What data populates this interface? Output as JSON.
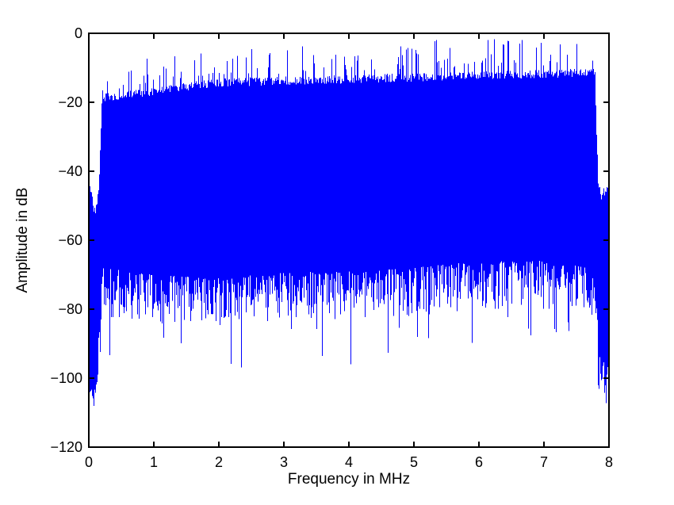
{
  "figure": {
    "background": "#ffffff"
  },
  "chart_data": {
    "type": "line",
    "title": "",
    "xlabel": "Frequency in MHz",
    "ylabel": "Amplitude in dB",
    "xlim": [
      0,
      8
    ],
    "ylim": [
      -120,
      0
    ],
    "xticks": [
      0,
      1,
      2,
      3,
      4,
      5,
      6,
      7,
      8
    ],
    "yticks": [
      0,
      -20,
      -40,
      -60,
      -80,
      -100,
      -120
    ],
    "grid": false,
    "legend": null,
    "line_color": "#0000ff",
    "axis_color": "#000000",
    "description": "Dense noise-like FFT magnitude spectrum (OFDM/DMT-style multicarrier signal). Occupied band runs from about 0.2 MHz to 7.8 MHz with a solid envelope top rising from about -20 dB to -13 dB and sparse spikes reaching up to about -1 dB; the noise floor fringe extends from about -68 dB down to occasional dips near -98 dB. Below 0.15 MHz and above 7.82 MHz the spectrum rolls off to about -45 dB tails that reach down to roughly -108 dB.",
    "band": [
      0.19,
      7.79
    ],
    "top_spike_probability": 0.17,
    "seed": 7,
    "envelope": {
      "top_solid": [
        [
          0,
          -44
        ],
        [
          0.04,
          -47
        ],
        [
          0.08,
          -52
        ],
        [
          0.12,
          -50
        ],
        [
          0.15,
          -46
        ],
        [
          0.17,
          -33
        ],
        [
          0.2,
          -20
        ],
        [
          0.5,
          -19.5
        ],
        [
          1,
          -18
        ],
        [
          2,
          -15.5
        ],
        [
          3,
          -15
        ],
        [
          4,
          -14.5
        ],
        [
          5,
          -14
        ],
        [
          6,
          -13.5
        ],
        [
          7,
          -13
        ],
        [
          7.78,
          -12.5
        ],
        [
          7.8,
          -26
        ],
        [
          7.83,
          -44
        ],
        [
          7.88,
          -48
        ],
        [
          7.92,
          -46
        ],
        [
          8,
          -44
        ]
      ],
      "peak": [
        [
          0.2,
          -10
        ],
        [
          0.6,
          -8
        ],
        [
          1,
          -7
        ],
        [
          2,
          -5
        ],
        [
          3,
          -4
        ],
        [
          4,
          -2.5
        ],
        [
          5,
          -2
        ],
        [
          6,
          -1.5
        ],
        [
          7,
          -1
        ],
        [
          7.78,
          -1
        ],
        [
          7.83,
          -42
        ],
        [
          8,
          -41
        ]
      ],
      "bottom_solid": [
        [
          0,
          -100
        ],
        [
          0.06,
          -104
        ],
        [
          0.1,
          -102
        ],
        [
          0.14,
          -90
        ],
        [
          0.18,
          -76
        ],
        [
          0.2,
          -68
        ],
        [
          1,
          -70
        ],
        [
          2,
          -71
        ],
        [
          3,
          -69
        ],
        [
          4,
          -69
        ],
        [
          5,
          -68
        ],
        [
          6,
          -66
        ],
        [
          7,
          -66
        ],
        [
          7.78,
          -68
        ],
        [
          7.82,
          -80
        ],
        [
          7.86,
          -92
        ],
        [
          7.95,
          -96
        ],
        [
          8,
          -97
        ]
      ],
      "bottom_spike_max": [
        [
          0,
          -108
        ],
        [
          0.1,
          -108
        ],
        [
          0.15,
          -101
        ],
        [
          0.2,
          -98
        ],
        [
          0.7,
          -93
        ],
        [
          1.3,
          -94
        ],
        [
          2,
          -90
        ],
        [
          2.25,
          -98
        ],
        [
          3,
          -89
        ],
        [
          3.9,
          -96
        ],
        [
          4.3,
          -96
        ],
        [
          5,
          -88
        ],
        [
          6,
          -90
        ],
        [
          7,
          -87
        ],
        [
          7.6,
          -86
        ],
        [
          7.78,
          -95
        ],
        [
          7.85,
          -105
        ],
        [
          7.9,
          -108
        ],
        [
          8,
          -110
        ]
      ]
    }
  }
}
